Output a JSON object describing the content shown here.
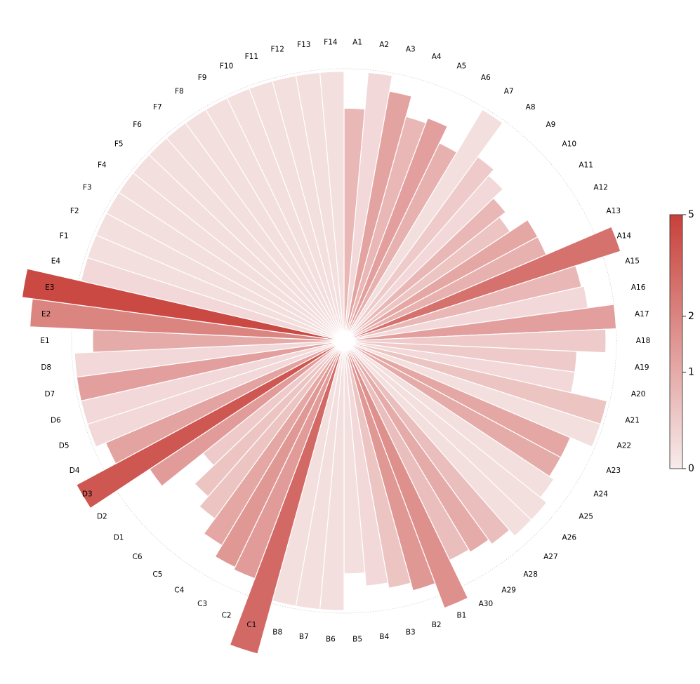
{
  "chart_data": {
    "type": "bar",
    "subtype": "polar-radial-bar",
    "title": "",
    "categories": [
      "A1",
      "A2",
      "A3",
      "A4",
      "A5",
      "A6",
      "A7",
      "A8",
      "A9",
      "A10",
      "A11",
      "A12",
      "A13",
      "A14",
      "A15",
      "A16",
      "A17",
      "A18",
      "A19",
      "A20",
      "A21",
      "A22",
      "A23",
      "A24",
      "A25",
      "A26",
      "A27",
      "A28",
      "A29",
      "A30",
      "B1",
      "B2",
      "B3",
      "B4",
      "B5",
      "B6",
      "B7",
      "B8",
      "C1",
      "C2",
      "C3",
      "C4",
      "C5",
      "C6",
      "D1",
      "D2",
      "D3",
      "D4",
      "D5",
      "D6",
      "D7",
      "D8",
      "E1",
      "E2",
      "E3",
      "E4",
      "F1",
      "F2",
      "F3",
      "F4",
      "F5",
      "F6",
      "F7",
      "F8",
      "F9",
      "F10",
      "F11",
      "F12",
      "F13",
      "F14"
    ],
    "values": [
      0.8,
      0.3,
      1.2,
      0.8,
      1.3,
      0.9,
      0.2,
      0.5,
      0.3,
      0.8,
      0.6,
      1.1,
      0.9,
      2.8,
      0.8,
      0.3,
      1.3,
      0.5,
      0.5,
      0.3,
      0.6,
      0.2,
      1.1,
      1.0,
      0.2,
      0.2,
      0.2,
      0.7,
      1.0,
      0.7,
      1.7,
      1.5,
      0.6,
      0.3,
      0.2,
      0.2,
      0.2,
      0.2,
      3.2,
      1.4,
      1.5,
      1.1,
      0.6,
      0.6,
      0.5,
      1.4,
      4.0,
      1.2,
      0.3,
      0.3,
      1.3,
      0.3,
      1.0,
      2.0,
      4.6,
      0.3,
      0.2,
      0.2,
      0.2,
      0.2,
      0.2,
      0.2,
      0.2,
      0.2,
      0.2,
      0.2,
      0.2,
      0.2,
      0.2,
      0.2
    ],
    "radii": [
      0.85,
      0.99,
      0.93,
      0.85,
      0.87,
      0.8,
      0.99,
      0.83,
      0.8,
      0.75,
      0.72,
      0.8,
      0.8,
      1.07,
      0.89,
      0.9,
      1.0,
      0.96,
      0.85,
      0.85,
      0.99,
      0.99,
      0.9,
      0.9,
      0.92,
      0.95,
      0.95,
      0.92,
      0.9,
      0.89,
      1.05,
      0.95,
      0.92,
      0.9,
      0.85,
      0.99,
      0.99,
      0.99,
      1.2,
      0.93,
      0.92,
      0.87,
      0.8,
      0.75,
      0.65,
      0.85,
      1.12,
      0.95,
      0.99,
      0.99,
      0.99,
      0.99,
      0.92,
      1.16,
      1.2,
      0.99,
      0.99,
      0.99,
      0.99,
      0.99,
      0.99,
      0.99,
      0.99,
      0.99,
      0.99,
      0.99,
      0.99,
      0.99,
      0.99,
      0.99
    ],
    "colorbar": {
      "min": 0,
      "max": 5,
      "ticks": [
        "0",
        "1",
        "2",
        "5"
      ],
      "tick_values": [
        0,
        1,
        2,
        5
      ]
    },
    "colors": {
      "low": "#f7ecec",
      "high": "#c8403a",
      "edge": "#ffffff"
    },
    "grid": false,
    "legend": "colorbar-right"
  }
}
